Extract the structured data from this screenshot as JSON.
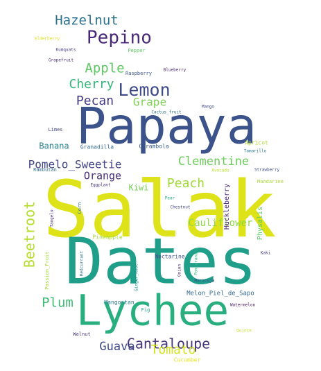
{
  "chart_data": {
    "type": "wordcloud",
    "font_scale": "font-size in px",
    "words": [
      {
        "text": "Salak",
        "value": 112,
        "color": "#dde318"
      },
      {
        "text": "Dates",
        "value": 92,
        "color": "#1f9e89"
      },
      {
        "text": "Papaya",
        "value": 72,
        "color": "#3b528b"
      },
      {
        "text": "Lychee",
        "value": 61,
        "color": "#29af7f"
      },
      {
        "text": "Pepino",
        "value": 26,
        "color": "#482878"
      },
      {
        "text": "Hazelnut",
        "value": 19,
        "color": "#2c728e"
      },
      {
        "text": "Lemon",
        "value": 25,
        "color": "#3e4a89"
      },
      {
        "text": "Apple",
        "value": 19,
        "color": "#5ec962"
      },
      {
        "text": "Cherry",
        "value": 18,
        "color": "#35b779"
      },
      {
        "text": "Pecan",
        "value": 18,
        "color": "#443983"
      },
      {
        "text": "Grape",
        "value": 16,
        "color": "#7ad151"
      },
      {
        "text": "Pomelo_Sweetie",
        "value": 16,
        "color": "#414487"
      },
      {
        "text": "Clementine",
        "value": 17,
        "color": "#6ccd5a"
      },
      {
        "text": "Orange",
        "value": 15,
        "color": "#472d7b"
      },
      {
        "text": "Peach",
        "value": 18,
        "color": "#a0da39"
      },
      {
        "text": "Kiwi",
        "value": 12,
        "color": "#75d054"
      },
      {
        "text": "Banana",
        "value": 12,
        "color": "#26828e"
      },
      {
        "text": "Beetroot",
        "value": 20,
        "color": "#b5de2b"
      },
      {
        "text": "Cauliflower",
        "value": 14,
        "color": "#8fd744"
      },
      {
        "text": "Plum",
        "value": 19,
        "color": "#3fbc73"
      },
      {
        "text": "Cantaloupe",
        "value": 20,
        "color": "#46337e"
      },
      {
        "text": "Guava",
        "value": 17,
        "color": "#3e4989"
      },
      {
        "text": "Tomato",
        "value": 18,
        "color": "#d2e21b"
      },
      {
        "text": "Melon_Piel_de_Sapo",
        "value": 9,
        "color": "#31688e"
      },
      {
        "text": "Nectarine",
        "value": 8,
        "color": "#3b528b"
      },
      {
        "text": "Pineapple",
        "value": 8,
        "color": "#a5db36"
      },
      {
        "text": "Mangostan",
        "value": 8,
        "color": "#2a788e"
      },
      {
        "text": "Huckleberry",
        "value": 10,
        "color": "#482475"
      },
      {
        "text": "Physalis",
        "value": 10,
        "color": "#5ec962"
      },
      {
        "text": "Granadilla",
        "value": 8,
        "color": "#31688e"
      },
      {
        "text": "Carambola",
        "value": 8,
        "color": "#39568c"
      },
      {
        "text": "Cucumber",
        "value": 8,
        "color": "#e5e419"
      },
      {
        "text": "Walnut",
        "value": 7,
        "color": "#46327e"
      },
      {
        "text": "Fig",
        "value": 7,
        "color": "#1f988b"
      },
      {
        "text": "Elderberry",
        "value": 6,
        "color": "#d8e219"
      },
      {
        "text": "Kumquats",
        "value": 6,
        "color": "#453882"
      },
      {
        "text": "Pepper",
        "value": 7,
        "color": "#5ec962"
      },
      {
        "text": "Grapefruit",
        "value": 6,
        "color": "#472c7a"
      },
      {
        "text": "Raspberry",
        "value": 7,
        "color": "#3a548c"
      },
      {
        "text": "Blueberry",
        "value": 6,
        "color": "#482677"
      },
      {
        "text": "Cactus_fruit",
        "value": 6,
        "color": "#2d708e"
      },
      {
        "text": "Mango",
        "value": 6,
        "color": "#3f4788"
      },
      {
        "text": "Limes",
        "value": 7,
        "color": "#414487"
      },
      {
        "text": "Apricot",
        "value": 8,
        "color": "#addc30"
      },
      {
        "text": "Tamarillo",
        "value": 6,
        "color": "#2a788e"
      },
      {
        "text": "Strawberry",
        "value": 6,
        "color": "#3e4c8a"
      },
      {
        "text": "Rambutan",
        "value": 7,
        "color": "#2d718e"
      },
      {
        "text": "Mandarine",
        "value": 7,
        "color": "#a8db34"
      },
      {
        "text": "Eggplant",
        "value": 6,
        "color": "#46307e"
      },
      {
        "text": "Chestnut",
        "value": 6,
        "color": "#404588"
      },
      {
        "text": "Pear",
        "value": 6,
        "color": "#26ad81"
      },
      {
        "text": "Kaki",
        "value": 6,
        "color": "#443983"
      },
      {
        "text": "Watermelon",
        "value": 6,
        "color": "#481769"
      },
      {
        "text": "Quince",
        "value": 6,
        "color": "#c0df25"
      },
      {
        "text": "Corn",
        "value": 7,
        "color": "#2a768e"
      },
      {
        "text": "Passion_Fruit",
        "value": 7,
        "color": "#a2da37"
      },
      {
        "text": "Tangelo",
        "value": 6,
        "color": "#472e7c"
      },
      {
        "text": "Ginger_Root",
        "value": 6,
        "color": "#20928c"
      },
      {
        "text": "Redcurrant",
        "value": 6,
        "color": "#2c738e"
      },
      {
        "text": "Maracuja",
        "value": 6,
        "color": "#3b528b"
      },
      {
        "text": "Avocado",
        "value": 6,
        "color": "#b8de29"
      },
      {
        "text": "Pomegranate",
        "value": 6,
        "color": "#2fb47c"
      },
      {
        "text": "Onion",
        "value": 6,
        "color": "#46337e"
      }
    ]
  }
}
